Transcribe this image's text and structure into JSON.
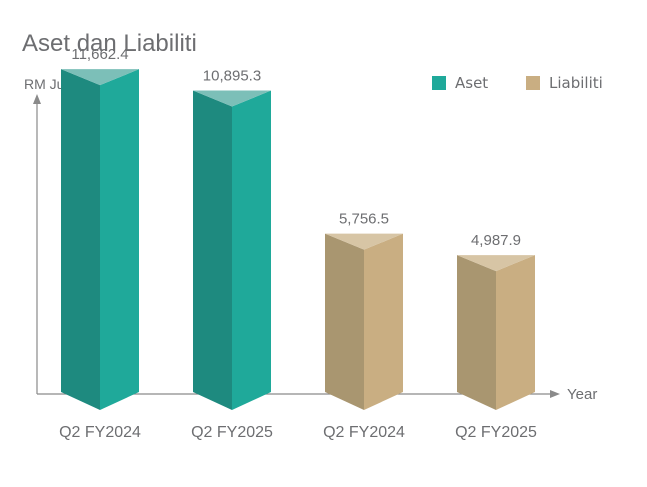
{
  "chart_data": {
    "type": "bar",
    "title": "Aset dan Liabiliti",
    "ylabel": "RM Juta",
    "xlabel": "Year",
    "categories": [
      "Q2 FY2024",
      "Q2 FY2025",
      "Q2 FY2024",
      "Q2 FY2025"
    ],
    "values": [
      11662.4,
      10895.3,
      5756.5,
      4987.9
    ],
    "value_labels": [
      "11,662.4",
      "10,895.3",
      "5,756.5",
      "4,987.9"
    ],
    "bar_series": [
      "Aset",
      "Aset",
      "Liabiliti",
      "Liabiliti"
    ],
    "series": [
      {
        "name": "Aset",
        "color": "#1fa99a"
      },
      {
        "name": "Liabiliti",
        "color": "#c9ae82"
      }
    ],
    "ylim": [
      0,
      13500
    ],
    "legend_position": "top-right",
    "grid": false
  }
}
